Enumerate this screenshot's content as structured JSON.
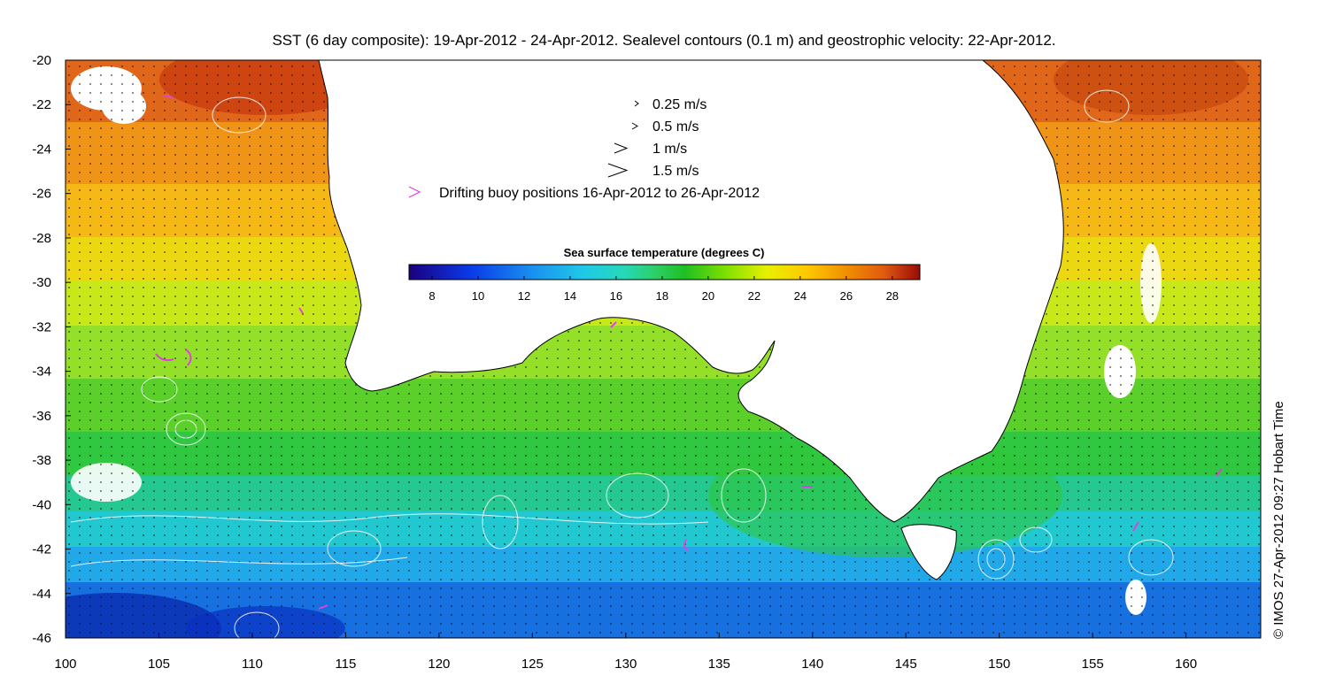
{
  "title": "SST (6 day composite): 19-Apr-2012 - 24-Apr-2012. Sealevel contours (0.1 m) and geostrophic velocity: 22-Apr-2012.",
  "credit": "© IMOS 27-Apr-2012 09:27 Hobart Time",
  "map": {
    "lon_range": [
      100,
      164
    ],
    "lat_range": [
      -46,
      -20
    ],
    "lon_ticks": [
      100,
      105,
      110,
      115,
      120,
      125,
      130,
      135,
      140,
      145,
      150,
      155,
      160
    ],
    "lat_ticks": [
      -20,
      -22,
      -24,
      -26,
      -28,
      -30,
      -32,
      -34,
      -36,
      -38,
      -40,
      -42,
      -44,
      -46
    ]
  },
  "legend": {
    "items": [
      {
        "label": "0.25 m/s",
        "speed": 0.25
      },
      {
        "label": "0.5 m/s",
        "speed": 0.5
      },
      {
        "label": "1 m/s",
        "speed": 1
      },
      {
        "label": "1.5 m/s",
        "speed": 1.5
      }
    ],
    "buoy_label": "Drifting buoy positions 16-Apr-2012 to 26-Apr-2012",
    "buoy_color": "#e040e0"
  },
  "colorbar": {
    "title": "Sea surface temperature (degrees C)",
    "range": [
      7,
      29.2
    ],
    "ticks": [
      8,
      10,
      12,
      14,
      16,
      18,
      20,
      22,
      24,
      26,
      28
    ],
    "colors": [
      "#00007f",
      "#0000ff",
      "#007fff",
      "#00bfff",
      "#00ffff",
      "#3fff7f",
      "#00c000",
      "#7fff00",
      "#ffff00",
      "#ffbf00",
      "#ff7f00",
      "#ff3f00",
      "#9f0000"
    ]
  }
}
